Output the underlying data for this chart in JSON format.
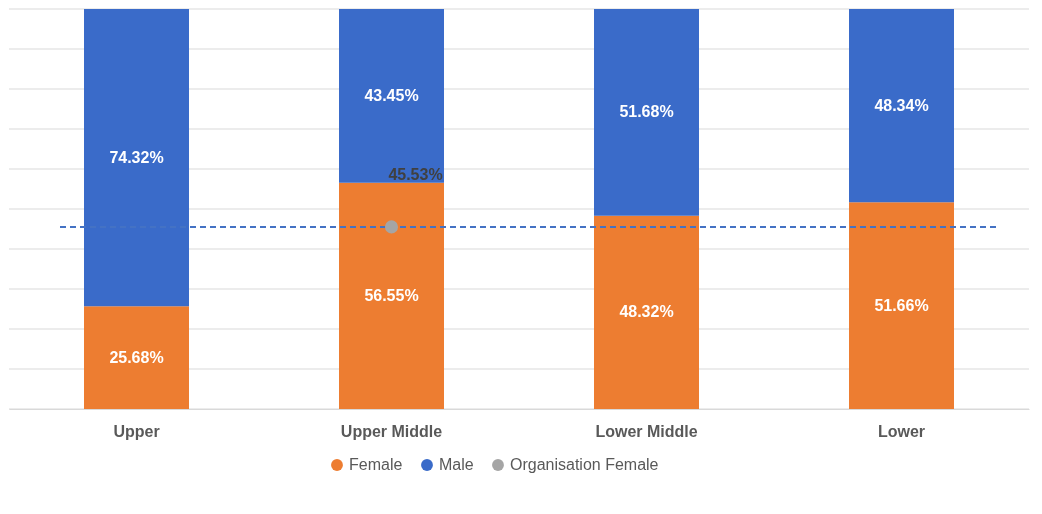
{
  "chart_data": {
    "type": "bar",
    "stacked": true,
    "legend": "bottom",
    "grid": "y",
    "tick_labels": "x",
    "categories": [
      "Upper",
      "Upper Middle",
      "Lower Middle",
      "Lower"
    ],
    "ylim": [
      0,
      100
    ],
    "yticks": [
      {
        "value": 0,
        "label": null
      },
      {
        "value": 10,
        "label": null
      },
      {
        "value": 20,
        "label": null
      },
      {
        "value": 30,
        "label": null
      },
      {
        "value": 40,
        "label": null
      },
      {
        "value": 50,
        "label": null
      },
      {
        "value": 60,
        "label": null
      },
      {
        "value": 70,
        "label": null
      },
      {
        "value": 80,
        "label": null
      },
      {
        "value": 90,
        "label": null
      },
      {
        "value": 100,
        "label": null
      }
    ],
    "series": [
      {
        "name": "Female",
        "color": "#ed7d31",
        "values": [
          25.68,
          56.55,
          48.32,
          51.66
        ],
        "value_labels": [
          "25.68%",
          "56.55%",
          "48.32%",
          "51.66%"
        ]
      },
      {
        "name": "Male",
        "color": "#3a6bc9",
        "values": [
          74.32,
          43.45,
          51.68,
          48.34
        ],
        "value_labels": [
          "74.32%",
          "43.45%",
          "51.68%",
          "48.34%"
        ]
      },
      {
        "name": "Organisation Female",
        "type": "scatter",
        "color": "#a5a5a5",
        "marker": "circle",
        "values": [
          null,
          45.53,
          null,
          null
        ]
      }
    ],
    "ref_lines": [
      {
        "axis": "y",
        "value": 45.53,
        "color": "#4472c4",
        "line_style": "dashed"
      }
    ],
    "annotations": [
      {
        "text": "45.53%",
        "y": 45.53
      }
    ]
  }
}
